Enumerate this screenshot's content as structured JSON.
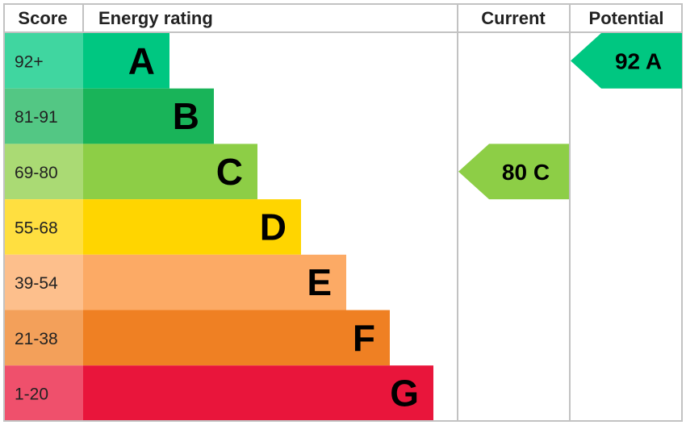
{
  "headers": {
    "score": "Score",
    "energy_rating": "Energy rating",
    "current": "Current",
    "potential": "Potential"
  },
  "chart_data": {
    "type": "bar",
    "bands": [
      {
        "letter": "A",
        "range": "92+",
        "color": "#00c781",
        "light": "#40d6a0"
      },
      {
        "letter": "B",
        "range": "81-91",
        "color": "#19b459",
        "light": "#53c784"
      },
      {
        "letter": "C",
        "range": "69-80",
        "color": "#8dce46",
        "light": "#aada74"
      },
      {
        "letter": "D",
        "range": "55-68",
        "color": "#ffd500",
        "light": "#ffdf40"
      },
      {
        "letter": "E",
        "range": "39-54",
        "color": "#fcaa65",
        "light": "#fdbf8c"
      },
      {
        "letter": "F",
        "range": "21-38",
        "color": "#ef8023",
        "light": "#f3a05a"
      },
      {
        "letter": "G",
        "range": "1-20",
        "color": "#e9153b",
        "light": "#ef506c"
      }
    ],
    "current": {
      "score": 80,
      "band": "C",
      "label": "80 C"
    },
    "potential": {
      "score": 92,
      "band": "A",
      "label": "92 A"
    }
  }
}
